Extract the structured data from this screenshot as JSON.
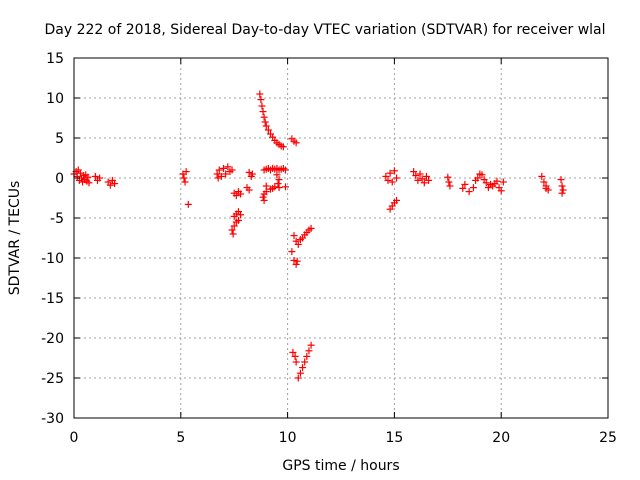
{
  "chart_data": {
    "type": "scatter",
    "title": "Day 222 of 2018, Sidereal Day-to-day VTEC variation (SDTVAR) for receiver wlal",
    "xlabel": "GPS time / hours",
    "ylabel": "SDTVAR / TECUs",
    "xlim": [
      0,
      25
    ],
    "ylim": [
      -30,
      15
    ],
    "xticks": [
      0,
      5,
      10,
      15,
      20,
      25
    ],
    "yticks": [
      15,
      10,
      5,
      0,
      -5,
      -10,
      -15,
      -20,
      -25,
      -30
    ],
    "grid": true,
    "marker": "plus",
    "color": "#ff0000",
    "series": [
      {
        "name": "SDTVAR",
        "points": [
          [
            0.0,
            0.5
          ],
          [
            0.1,
            0.8
          ],
          [
            0.15,
            0.2
          ],
          [
            0.2,
            1.0
          ],
          [
            0.25,
            -0.3
          ],
          [
            0.3,
            0.6
          ],
          [
            0.35,
            0.0
          ],
          [
            0.4,
            -0.5
          ],
          [
            0.45,
            0.3
          ],
          [
            0.5,
            -0.2
          ],
          [
            0.55,
            0.4
          ],
          [
            0.6,
            -0.4
          ],
          [
            0.65,
            0.1
          ],
          [
            0.7,
            -0.6
          ],
          [
            1.0,
            0.2
          ],
          [
            1.1,
            -0.3
          ],
          [
            1.2,
            0.0
          ],
          [
            1.6,
            -0.5
          ],
          [
            1.7,
            -0.9
          ],
          [
            1.8,
            -0.3
          ],
          [
            1.9,
            -0.7
          ],
          [
            5.1,
            0.5
          ],
          [
            5.15,
            0.0
          ],
          [
            5.2,
            -0.5
          ],
          [
            5.25,
            0.8
          ],
          [
            5.35,
            -3.3
          ],
          [
            6.7,
            0.5
          ],
          [
            6.8,
            1.0
          ],
          [
            6.9,
            0.2
          ],
          [
            7.0,
            1.2
          ],
          [
            7.1,
            0.5
          ],
          [
            7.2,
            1.4
          ],
          [
            7.3,
            0.8
          ],
          [
            7.4,
            1.0
          ],
          [
            6.75,
            0.0
          ],
          [
            7.5,
            -1.9
          ],
          [
            7.6,
            -2.2
          ],
          [
            7.7,
            -1.7
          ],
          [
            7.8,
            -2.0
          ],
          [
            7.5,
            -4.8
          ],
          [
            7.6,
            -4.5
          ],
          [
            7.7,
            -4.2
          ],
          [
            7.8,
            -4.6
          ],
          [
            7.4,
            -6.5
          ],
          [
            7.5,
            -6.0
          ],
          [
            7.6,
            -5.5
          ],
          [
            7.7,
            -5.3
          ],
          [
            7.45,
            -7.0
          ],
          [
            8.2,
            0.7
          ],
          [
            8.3,
            0.2
          ],
          [
            8.35,
            0.5
          ],
          [
            8.1,
            -1.2
          ],
          [
            8.2,
            -1.5
          ],
          [
            8.7,
            10.5
          ],
          [
            8.75,
            9.8
          ],
          [
            8.8,
            9.0
          ],
          [
            8.85,
            8.3
          ],
          [
            8.9,
            7.6
          ],
          [
            8.95,
            7.0
          ],
          [
            9.0,
            6.5
          ],
          [
            9.1,
            6.0
          ],
          [
            9.2,
            5.5
          ],
          [
            9.3,
            5.1
          ],
          [
            9.4,
            4.7
          ],
          [
            9.5,
            4.4
          ],
          [
            9.6,
            4.2
          ],
          [
            9.7,
            4.0
          ],
          [
            9.8,
            3.9
          ],
          [
            8.9,
            1.0
          ],
          [
            9.0,
            1.1
          ],
          [
            9.1,
            1.2
          ],
          [
            9.2,
            1.0
          ],
          [
            9.3,
            1.2
          ],
          [
            9.4,
            1.1
          ],
          [
            9.5,
            1.2
          ],
          [
            9.6,
            1.0
          ],
          [
            9.7,
            1.1
          ],
          [
            9.8,
            1.2
          ],
          [
            9.9,
            1.0
          ],
          [
            9.5,
            0.4
          ],
          [
            9.6,
            -0.2
          ],
          [
            9.55,
            -0.7
          ],
          [
            9.4,
            -1.1
          ],
          [
            9.2,
            -1.4
          ],
          [
            9.0,
            -1.7
          ],
          [
            8.9,
            -2.0
          ],
          [
            8.85,
            -2.4
          ],
          [
            8.9,
            -2.8
          ],
          [
            9.0,
            -1.0
          ],
          [
            9.3,
            -1.3
          ],
          [
            9.6,
            -1.2
          ],
          [
            9.9,
            -1.1
          ],
          [
            10.2,
            4.9
          ],
          [
            10.3,
            4.6
          ],
          [
            10.4,
            4.4
          ],
          [
            10.3,
            -7.2
          ],
          [
            10.4,
            -7.9
          ],
          [
            10.5,
            -8.3
          ],
          [
            10.6,
            -7.7
          ],
          [
            10.7,
            -7.5
          ],
          [
            10.8,
            -7.1
          ],
          [
            10.9,
            -6.8
          ],
          [
            11.0,
            -6.5
          ],
          [
            11.1,
            -6.3
          ],
          [
            10.2,
            -9.2
          ],
          [
            10.3,
            -10.3
          ],
          [
            10.4,
            -10.8
          ],
          [
            10.45,
            -10.4
          ],
          [
            10.25,
            -21.8
          ],
          [
            10.35,
            -22.3
          ],
          [
            10.4,
            -23.0
          ],
          [
            10.5,
            -25.0
          ],
          [
            10.6,
            -24.4
          ],
          [
            10.7,
            -23.7
          ],
          [
            10.8,
            -23.0
          ],
          [
            10.9,
            -22.3
          ],
          [
            11.0,
            -21.6
          ],
          [
            11.1,
            -20.9
          ],
          [
            14.6,
            0.2
          ],
          [
            14.7,
            -0.3
          ],
          [
            14.8,
            0.6
          ],
          [
            14.9,
            -0.5
          ],
          [
            15.0,
            0.9
          ],
          [
            15.1,
            0.0
          ],
          [
            14.8,
            -3.9
          ],
          [
            14.9,
            -3.5
          ],
          [
            15.0,
            -3.1
          ],
          [
            15.1,
            -2.8
          ],
          [
            15.9,
            0.8
          ],
          [
            16.0,
            0.3
          ],
          [
            16.1,
            -0.3
          ],
          [
            16.2,
            0.5
          ],
          [
            16.3,
            -0.1
          ],
          [
            16.4,
            -0.6
          ],
          [
            16.5,
            0.2
          ],
          [
            16.6,
            -0.3
          ],
          [
            17.5,
            0.1
          ],
          [
            17.55,
            -0.5
          ],
          [
            17.6,
            -1.0
          ],
          [
            18.2,
            -1.3
          ],
          [
            18.3,
            -0.8
          ],
          [
            18.5,
            -1.7
          ],
          [
            18.7,
            -1.2
          ],
          [
            18.8,
            -0.3
          ],
          [
            18.9,
            0.0
          ],
          [
            19.0,
            0.5
          ],
          [
            19.1,
            0.4
          ],
          [
            19.2,
            -0.2
          ],
          [
            19.3,
            -0.6
          ],
          [
            19.4,
            -1.2
          ],
          [
            19.5,
            -0.8
          ],
          [
            19.6,
            -1.0
          ],
          [
            19.7,
            -0.7
          ],
          [
            19.8,
            -0.4
          ],
          [
            19.9,
            -1.2
          ],
          [
            20.0,
            -1.6
          ],
          [
            20.1,
            -0.5
          ],
          [
            21.9,
            0.2
          ],
          [
            22.0,
            -0.5
          ],
          [
            22.1,
            -1.0
          ],
          [
            22.2,
            -1.5
          ],
          [
            22.1,
            -1.3
          ],
          [
            22.8,
            -0.2
          ],
          [
            22.85,
            -1.0
          ],
          [
            22.9,
            -1.5
          ],
          [
            22.85,
            -1.9
          ]
        ]
      }
    ]
  }
}
